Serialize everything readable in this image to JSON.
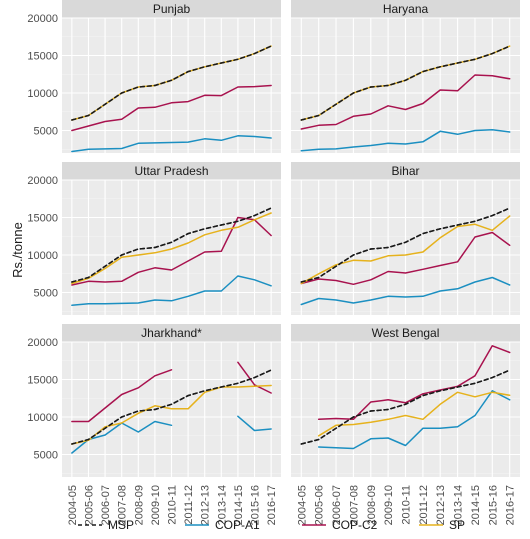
{
  "chart_data": {
    "type": "line",
    "ylabel": "Rs./tonne",
    "ylim": [
      2000,
      20000
    ],
    "y_ticks": [
      5000,
      10000,
      15000,
      20000
    ],
    "x": [
      "2004-05",
      "2005-06",
      "2006-07",
      "2007-08",
      "2008-09",
      "2009-10",
      "2010-11",
      "2011-12",
      "2012-13",
      "2013-14",
      "2014-15",
      "2015-16",
      "2016-17"
    ],
    "legend": {
      "placement": "bottom",
      "entries": [
        {
          "label": "MSP",
          "color": "#1a1a1a",
          "dash": true
        },
        {
          "label": "COP-A1",
          "color": "#1b8fc1",
          "dash": false
        },
        {
          "label": "COP-C2",
          "color": "#a8124e",
          "dash": false
        },
        {
          "label": "SP",
          "color": "#e6b21c",
          "dash": false
        }
      ]
    },
    "grid": true,
    "panels": [
      {
        "title": "Punjab",
        "series": [
          {
            "name": "MSP",
            "values": [
              6400,
              7000,
              8500,
              10000,
              10800,
              11000,
              11700,
              12850,
              13500,
              14000,
              14500,
              15250,
              16250
            ]
          },
          {
            "name": "COP-A1",
            "values": [
              2200,
              2500,
              2550,
              2600,
              3300,
              3350,
              3400,
              3450,
              3900,
              3700,
              4300,
              4200,
              4000
            ]
          },
          {
            "name": "COP-C2",
            "values": [
              5000,
              5600,
              6200,
              6500,
              8000,
              8100,
              8700,
              8850,
              9700,
              9650,
              10800,
              10850,
              11000
            ]
          },
          {
            "name": "SP",
            "values": [
              6400,
              7000,
              8500,
              10000,
              10800,
              11000,
              11700,
              12850,
              13500,
              14000,
              14500,
              15250,
              16250
            ]
          }
        ]
      },
      {
        "title": "Haryana",
        "series": [
          {
            "name": "MSP",
            "values": [
              6400,
              7000,
              8500,
              10000,
              10800,
              11000,
              11700,
              12850,
              13500,
              14000,
              14500,
              15250,
              16250
            ]
          },
          {
            "name": "COP-A1",
            "values": [
              2300,
              2500,
              2550,
              2800,
              3000,
              3300,
              3200,
              3500,
              4900,
              4500,
              5000,
              5100,
              4800
            ]
          },
          {
            "name": "COP-C2",
            "values": [
              5200,
              5700,
              5800,
              6900,
              7200,
              8300,
              7800,
              8600,
              10400,
              10300,
              12400,
              12300,
              11900
            ]
          },
          {
            "name": "SP",
            "values": [
              6400,
              7000,
              8500,
              10000,
              10800,
              11000,
              11700,
              12850,
              13500,
              14000,
              14500,
              15250,
              16250
            ]
          }
        ]
      },
      {
        "title": "Uttar Pradesh",
        "series": [
          {
            "name": "MSP",
            "values": [
              6400,
              7000,
              8500,
              10000,
              10800,
              11000,
              11700,
              12850,
              13500,
              14000,
              14500,
              15250,
              16250
            ]
          },
          {
            "name": "COP-A1",
            "values": [
              3300,
              3500,
              3500,
              3550,
              3600,
              4000,
              3900,
              4500,
              5200,
              5200,
              7200,
              6700,
              5900
            ]
          },
          {
            "name": "COP-C2",
            "values": [
              6000,
              6500,
              6400,
              6500,
              7700,
              8300,
              8000,
              9200,
              10400,
              10500,
              15000,
              14700,
              12600
            ]
          },
          {
            "name": "SP",
            "values": [
              6200,
              6900,
              8200,
              9700,
              10000,
              10300,
              10800,
              11600,
              12700,
              13300,
              13700,
              14700,
              15600
            ]
          }
        ]
      },
      {
        "title": "Bihar",
        "series": [
          {
            "name": "MSP",
            "values": [
              6400,
              7000,
              8500,
              10000,
              10800,
              11000,
              11700,
              12850,
              13500,
              14000,
              14500,
              15250,
              16250
            ]
          },
          {
            "name": "COP-A1",
            "values": [
              3400,
              4200,
              4000,
              3600,
              4000,
              4500,
              4400,
              4500,
              5200,
              5500,
              6400,
              7000,
              6000
            ]
          },
          {
            "name": "COP-C2",
            "values": [
              6200,
              6800,
              6600,
              6100,
              6700,
              7800,
              7600,
              8100,
              8600,
              9100,
              12400,
              13000,
              11300
            ]
          },
          {
            "name": "SP",
            "values": [
              6200,
              7500,
              8700,
              9300,
              9200,
              9900,
              10000,
              10400,
              12300,
              13800,
              14100,
              13300,
              15200
            ]
          }
        ]
      },
      {
        "title": "Jharkhand*",
        "series": [
          {
            "name": "MSP",
            "values": [
              6400,
              7000,
              8500,
              10000,
              10800,
              11000,
              11700,
              12850,
              13500,
              14000,
              14500,
              15250,
              16250
            ]
          },
          {
            "name": "COP-A1",
            "values": [
              5200,
              7000,
              7600,
              9200,
              8000,
              9400,
              8900,
              null,
              null,
              null,
              10100,
              8200,
              8400
            ]
          },
          {
            "name": "COP-C2",
            "values": [
              9400,
              9400,
              11200,
              13000,
              13900,
              15500,
              16300,
              null,
              null,
              null,
              17300,
              14300,
              13200
            ]
          },
          {
            "name": "SP",
            "values": [
              6400,
              6900,
              8700,
              9200,
              10500,
              11500,
              11100,
              11100,
              13300,
              14000,
              14000,
              14100,
              14200
            ]
          }
        ]
      },
      {
        "title": "West Bengal",
        "series": [
          {
            "name": "MSP",
            "values": [
              6400,
              7000,
              8500,
              10000,
              10800,
              11000,
              11700,
              12850,
              13500,
              14000,
              14500,
              15250,
              16250
            ]
          },
          {
            "name": "COP-A1",
            "values": null
          },
          {
            "name": "COP-C2",
            "values": null
          },
          {
            "name": "SP",
            "values": null
          }
        ],
        "series_from_2005": [
          {
            "name": "COP-A1",
            "values": [
              6000,
              5900,
              5800,
              7100,
              7200,
              6200,
              8500,
              8500,
              8700,
              10200,
              13500,
              12300
            ]
          },
          {
            "name": "COP-C2",
            "values": [
              9700,
              9800,
              9700,
              12000,
              12300,
              11900,
              13100,
              13600,
              14100,
              15500,
              19500,
              18600
            ]
          },
          {
            "name": "SP",
            "values": [
              7500,
              8900,
              9000,
              9300,
              9700,
              10200,
              9700,
              11700,
              13300,
              12700,
              13300,
              12900
            ]
          }
        ]
      }
    ]
  }
}
